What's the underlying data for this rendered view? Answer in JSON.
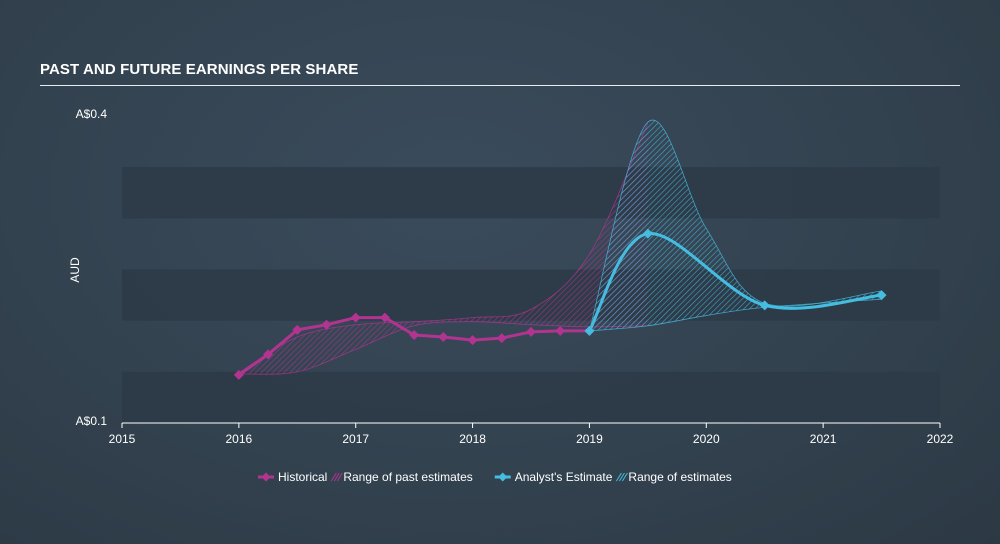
{
  "chart_data": {
    "type": "line",
    "title": "PAST AND FUTURE EARNINGS PER SHARE",
    "ylabel": "AUD",
    "xlim": [
      2015,
      2022
    ],
    "ylim": [
      0.1,
      0.4
    ],
    "y_tick_labels": [
      {
        "value": 0.4,
        "label": "A$0.4"
      },
      {
        "value": 0.1,
        "label": "A$0.1"
      }
    ],
    "x_ticks": [
      2015,
      2016,
      2017,
      2018,
      2019,
      2020,
      2021,
      2022
    ],
    "grid": true,
    "legend_position": "bottom",
    "colors": {
      "historical": "#b23490",
      "historical_range": "#b23490",
      "estimate": "#45bde0",
      "estimate_range": "#45bde0",
      "band": "#2d3a47"
    },
    "legend": [
      {
        "key": "historical",
        "label": "Historical",
        "marker": "diamond-line"
      },
      {
        "key": "historical_range",
        "label": "Range of past estimates",
        "marker": "hatch"
      },
      {
        "key": "estimate",
        "label": "Analyst's Estimate",
        "marker": "diamond-line"
      },
      {
        "key": "estimate_range",
        "label": "Range of estimates",
        "marker": "hatch"
      }
    ],
    "series": [
      {
        "name": "Historical",
        "x": [
          2016.0,
          2016.25,
          2016.5,
          2016.75,
          2017.0,
          2017.25,
          2017.5,
          2017.75,
          2018.0,
          2018.25,
          2018.5,
          2018.75,
          2019.0
        ],
        "values": [
          0.147,
          0.167,
          0.191,
          0.196,
          0.203,
          0.203,
          0.186,
          0.184,
          0.181,
          0.183,
          0.189,
          0.19,
          0.19
        ]
      },
      {
        "name": "Analyst's Estimate",
        "x": [
          2019.0,
          2019.5,
          2020.5,
          2021.5
        ],
        "values": [
          0.19,
          0.285,
          0.215,
          0.225
        ]
      }
    ],
    "past_estimate_range": {
      "x": [
        2016.0,
        2016.5,
        2017.0,
        2017.5,
        2018.0,
        2018.5,
        2019.0,
        2019.5
      ],
      "high": [
        0.149,
        0.184,
        0.196,
        0.199,
        0.203,
        0.211,
        0.265,
        0.393
      ],
      "low": [
        0.148,
        0.15,
        0.172,
        0.195,
        0.199,
        0.196,
        0.194,
        0.195
      ]
    },
    "estimate_range": {
      "x": [
        2019.0,
        2019.5,
        2020.0,
        2020.5,
        2021.5
      ],
      "high": [
        0.19,
        0.394,
        0.29,
        0.217,
        0.229
      ],
      "low": [
        0.19,
        0.195,
        0.205,
        0.213,
        0.221
      ]
    }
  }
}
